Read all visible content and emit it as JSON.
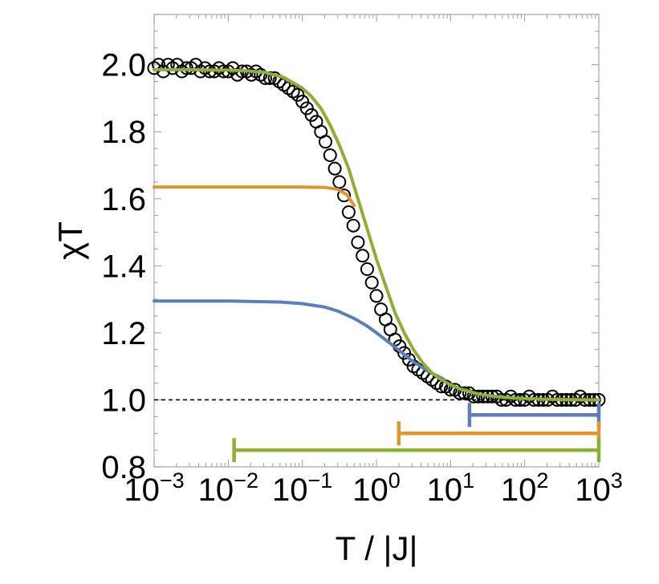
{
  "chart_data": {
    "type": "line",
    "title": "",
    "xlabel": "T / |J|",
    "ylabel": "χT",
    "x_scale": "log",
    "xlim": [
      0.001,
      1000
    ],
    "ylim": [
      0.8,
      2.15
    ],
    "x_ticks": [
      {
        "value": 0.001,
        "base": "10",
        "exp": "−3"
      },
      {
        "value": 0.01,
        "base": "10",
        "exp": "−2"
      },
      {
        "value": 0.1,
        "base": "10",
        "exp": "−1"
      },
      {
        "value": 1,
        "base": "10",
        "exp": "0"
      },
      {
        "value": 10,
        "base": "10",
        "exp": "1"
      },
      {
        "value": 100,
        "base": "10",
        "exp": "2"
      },
      {
        "value": 1000,
        "base": "10",
        "exp": "3"
      }
    ],
    "y_ticks": [
      {
        "value": 0.8,
        "label": "0.8"
      },
      {
        "value": 1.0,
        "label": "1.0"
      },
      {
        "value": 1.2,
        "label": "1.2"
      },
      {
        "value": 1.4,
        "label": "1.4"
      },
      {
        "value": 1.6,
        "label": "1.6"
      },
      {
        "value": 1.8,
        "label": "1.8"
      },
      {
        "value": 2.0,
        "label": "2.0"
      }
    ],
    "grid": false,
    "reference_line": {
      "y": 1.0,
      "style": "dashed",
      "color": "#000000"
    },
    "series": [
      {
        "kind": "markers",
        "marker": "open-circle",
        "color": "#000000",
        "x": [
          0.001,
          0.00115,
          0.00133,
          0.00154,
          0.00178,
          0.00205,
          0.00237,
          0.00274,
          0.00316,
          0.00365,
          0.00422,
          0.00487,
          0.00562,
          0.00649,
          0.0075,
          0.00866,
          0.01,
          0.0115,
          0.0133,
          0.0154,
          0.0178,
          0.0205,
          0.0237,
          0.0274,
          0.0316,
          0.0365,
          0.0422,
          0.0487,
          0.0562,
          0.0649,
          0.075,
          0.0866,
          0.1,
          0.115,
          0.133,
          0.154,
          0.178,
          0.205,
          0.237,
          0.274,
          0.316,
          0.365,
          0.422,
          0.487,
          0.562,
          0.649,
          0.75,
          0.866,
          1.0,
          1.15,
          1.33,
          1.54,
          1.78,
          2.05,
          2.37,
          2.74,
          3.16,
          3.65,
          4.22,
          4.87,
          5.62,
          6.49,
          7.5,
          8.66,
          10.0,
          11.5,
          13.3,
          15.4,
          17.8,
          20.5,
          23.7,
          27.4,
          31.6,
          36.5,
          42.2,
          48.7,
          56.2,
          64.9,
          75.0,
          86.6,
          100,
          115,
          133,
          154,
          178,
          205,
          237,
          274,
          316,
          365,
          422,
          487,
          562,
          649,
          750,
          866,
          1000
        ],
        "y": [
          1.99,
          2.0,
          1.98,
          2.0,
          1.99,
          2.0,
          1.98,
          1.99,
          1.99,
          2.0,
          1.98,
          1.99,
          1.98,
          1.98,
          1.99,
          1.98,
          1.98,
          1.99,
          1.97,
          1.98,
          1.98,
          1.97,
          1.98,
          1.97,
          1.96,
          1.96,
          1.96,
          1.95,
          1.94,
          1.93,
          1.92,
          1.91,
          1.89,
          1.87,
          1.85,
          1.83,
          1.8,
          1.77,
          1.73,
          1.69,
          1.65,
          1.61,
          1.56,
          1.52,
          1.47,
          1.43,
          1.39,
          1.35,
          1.31,
          1.27,
          1.24,
          1.21,
          1.18,
          1.16,
          1.14,
          1.12,
          1.1,
          1.09,
          1.08,
          1.07,
          1.06,
          1.05,
          1.04,
          1.04,
          1.03,
          1.03,
          1.02,
          1.02,
          1.02,
          1.01,
          1.01,
          1.01,
          1.01,
          1.01,
          1.01,
          1.0,
          1.0,
          1.01,
          1.0,
          1.0,
          1.0,
          1.01,
          1.0,
          1.0,
          1.0,
          1.0,
          1.01,
          1.0,
          1.0,
          1.0,
          1.0,
          1.0,
          1.01,
          1.0,
          1.0,
          1.0,
          1.0
        ]
      },
      {
        "kind": "line",
        "color": "#e1952e",
        "x": [
          0.001,
          0.01,
          0.1,
          0.2,
          0.3,
          0.4,
          0.5
        ],
        "y": [
          1.635,
          1.635,
          1.635,
          1.634,
          1.628,
          1.612,
          1.58
        ]
      },
      {
        "kind": "line",
        "color": "#5b7fb6",
        "x": [
          0.001,
          0.01,
          0.05,
          0.1,
          0.2,
          0.3,
          0.5,
          0.75,
          1.0,
          1.5,
          2.0,
          3.0,
          5.0,
          8.0
        ],
        "y": [
          1.295,
          1.295,
          1.292,
          1.287,
          1.277,
          1.265,
          1.243,
          1.22,
          1.2,
          1.17,
          1.148,
          1.117,
          1.085,
          1.062
        ]
      },
      {
        "kind": "line",
        "color": "#8daf33",
        "x": [
          0.001,
          0.00178,
          0.00316,
          0.00562,
          0.01,
          0.0178,
          0.0316,
          0.0562,
          0.1,
          0.133,
          0.178,
          0.237,
          0.316,
          0.422,
          0.562,
          0.75,
          1.0,
          1.33,
          1.78,
          2.37,
          3.16,
          4.22,
          5.62,
          7.5,
          10.0,
          13.3,
          17.8,
          23.7,
          31.6,
          42.2,
          56.2,
          75.0,
          100,
          178,
          316,
          562,
          1000
        ],
        "y": [
          1.985,
          1.985,
          1.985,
          1.984,
          1.984,
          1.982,
          1.977,
          1.962,
          1.93,
          1.905,
          1.87,
          1.82,
          1.76,
          1.69,
          1.6,
          1.51,
          1.42,
          1.34,
          1.26,
          1.2,
          1.15,
          1.11,
          1.08,
          1.06,
          1.045,
          1.033,
          1.025,
          1.018,
          1.013,
          1.01,
          1.007,
          1.005,
          1.004,
          1.002,
          1.001,
          1.0,
          1.0
        ]
      }
    ],
    "range_bars": [
      {
        "color": "#5b7fb6",
        "x_start": 18,
        "x_end": 1000,
        "y": 0.955
      },
      {
        "color": "#e1952e",
        "x_start": 2,
        "x_end": 1000,
        "y": 0.9
      },
      {
        "color": "#8daf33",
        "x_start": 0.012,
        "x_end": 1000,
        "y": 0.85
      }
    ]
  }
}
